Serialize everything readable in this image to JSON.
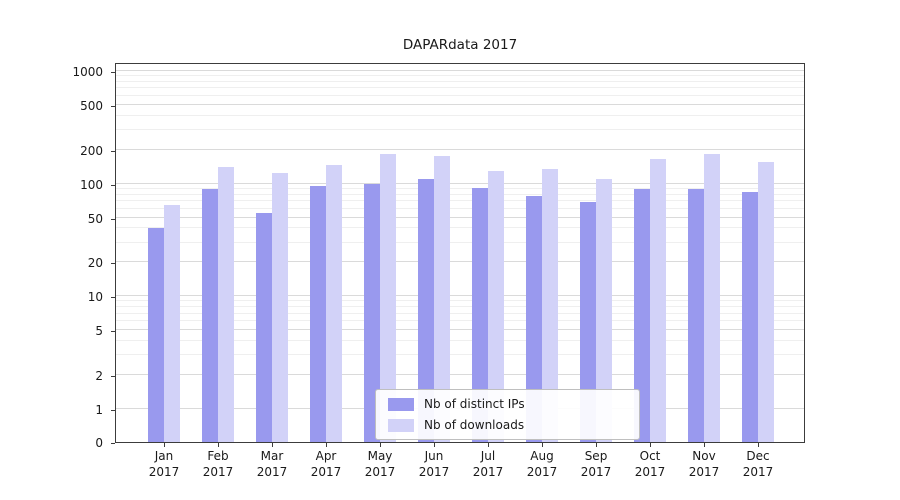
{
  "chart_data": {
    "type": "bar",
    "title": "DAPARdata 2017",
    "categories": [
      "Jan 2017",
      "Feb 2017",
      "Mar 2017",
      "Apr 2017",
      "May 2017",
      "Jun 2017",
      "Jul 2017",
      "Aug 2017",
      "Sep 2017",
      "Oct 2017",
      "Nov 2017",
      "Dec 2017"
    ],
    "series": [
      {
        "name": "Nb of distinct IPs",
        "color": "#9999ee",
        "values": [
          40,
          90,
          55,
          95,
          100,
          110,
          92,
          78,
          68,
          90,
          90,
          85
        ]
      },
      {
        "name": "Nb of downloads",
        "color": "#d2d2f8",
        "values": [
          65,
          140,
          125,
          145,
          185,
          175,
          130,
          135,
          110,
          165,
          185,
          155
        ]
      }
    ],
    "yscale": "symlog",
    "yticks": [
      0,
      1,
      2,
      5,
      10,
      20,
      50,
      100,
      200,
      500,
      1000
    ],
    "ylim": [
      0,
      1000
    ],
    "xlabel": "",
    "ylabel": "",
    "grid": true,
    "legend_position": "lower center",
    "colors": {
      "bar_dark": "#9999ee",
      "bar_light": "#d2d2f8",
      "grid_major": "#dadada",
      "grid_minor": "#efefef",
      "axis_frame": "#3c3c3c"
    }
  }
}
